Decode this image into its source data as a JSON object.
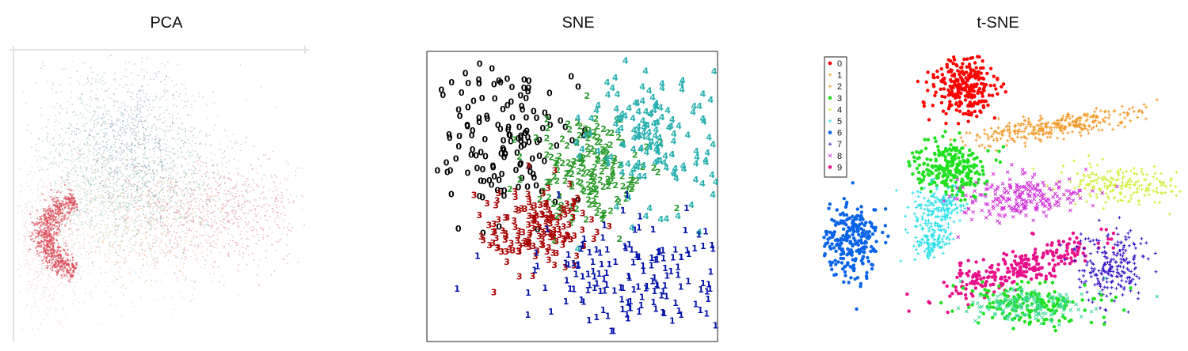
{
  "chart_data": [
    {
      "type": "scatter",
      "title": "PCA",
      "grid": false,
      "colors": {
        "pink": "#c4406a",
        "red": "#d8414e",
        "blue_grey": "#5b6a9e",
        "teal": "#4c9a8e",
        "green": "#7fa96a",
        "orange": "#f0a060",
        "light_pink": "#e7a2b6",
        "sage": "#9cc0a0"
      }
    },
    {
      "type": "scatter",
      "title": "SNE",
      "grid": false,
      "series": [
        {
          "digit": "0",
          "color": "#000000"
        },
        {
          "digit": "2",
          "color": "#2a9a2a"
        },
        {
          "digit": "3",
          "color": "#a80000"
        },
        {
          "digit": "4",
          "color": "#2ab0b0"
        },
        {
          "digit": "1",
          "color": "#0010a8"
        }
      ]
    },
    {
      "type": "scatter",
      "title": "t-SNE",
      "grid": false,
      "legend": {
        "position": "top-left",
        "labels": [
          "0",
          "1",
          "2",
          "3",
          "4",
          "5",
          "6",
          "7",
          "8",
          "9"
        ]
      },
      "series": [
        {
          "name": "0",
          "color": "#ff0000",
          "marker": "circle"
        },
        {
          "name": "1",
          "color": "#f39a2a",
          "marker": "plus"
        },
        {
          "name": "2",
          "color": "#f39a2a",
          "marker": "plus"
        },
        {
          "name": "3",
          "color": "#20e020",
          "marker": "circle"
        },
        {
          "name": "4",
          "color": "#d2ee3a",
          "marker": "plus"
        },
        {
          "name": "5",
          "color": "#2ae0e8",
          "marker": "plus"
        },
        {
          "name": "6",
          "color": "#0a64e8",
          "marker": "circle"
        },
        {
          "name": "7",
          "color": "#3a18c8",
          "marker": "plus"
        },
        {
          "name": "8",
          "color": "#d030d8",
          "marker": "cross"
        },
        {
          "name": "9",
          "color": "#e8108a",
          "marker": "circle"
        }
      ]
    }
  ]
}
